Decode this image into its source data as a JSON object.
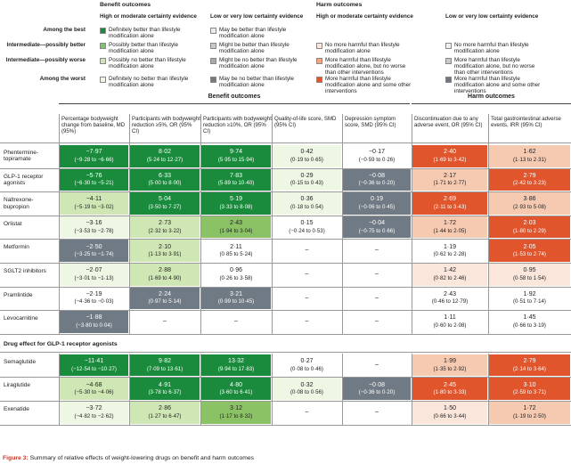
{
  "legend": {
    "benefit_title": "Benefit outcomes",
    "harm_title": "Harm outcomes",
    "benefit_high": "High or moderate certainty evidence",
    "benefit_low": "Low or very low certainty evidence",
    "harm_high": "High or moderate certainty evidence",
    "harm_low": "Low or very low certainty evidence",
    "row_labels": [
      "Among the best",
      "Intermediate—possibly better",
      "Intermediate—possibly worse",
      "Among the worst"
    ],
    "benefit_high_items": [
      {
        "text": "Definitely better than lifestyle modification alone",
        "color": "#1a8a3c"
      },
      {
        "text": "Possibly better than lifestyle modification alone",
        "color": "#7ec46a"
      },
      {
        "text": "Possibly no better than lifestyle modification alone",
        "color": "#cfe6b5"
      },
      {
        "text": "Definitely no better than lifestyle modification alone",
        "color": "#eef6e4"
      }
    ],
    "benefit_low_items": [
      {
        "text": "May be better than lifestyle modification alone",
        "color": "#ebebeb"
      },
      {
        "text": "Might be better than lifestyle modification alone",
        "color": "#c8c8c8"
      },
      {
        "text": "Might be no better than lifestyle modification alone",
        "color": "#a9a9a9"
      },
      {
        "text": "May be no better than lifestyle modification alone",
        "color": "#707a84"
      }
    ],
    "harm_high_items": [
      {
        "text": "No more harmful than lifestyle modification alone",
        "color": "#fbe6dc"
      },
      {
        "text": "More harmful than lifestyle modification alone, but no worse than other interventions",
        "color": "#f2a57f"
      },
      {
        "text": "More harmful than lifestyle modification alone and some other interventions",
        "color": "#e0552b"
      }
    ],
    "harm_low_items": [
      {
        "text": "No more harmful than lifestyle modification alone",
        "color": "#f0f0f0"
      },
      {
        "text": "More harmful than lifestyle modification alone, but no worse than other interventions",
        "color": "#c9c9c9"
      },
      {
        "text": "More harmful than lifestyle modification alone and some other interventions",
        "color": "#6f7780"
      }
    ]
  },
  "table": {
    "benefit_header": "Benefit outcomes",
    "harm_header": "Harm outcomes",
    "columns": [
      "Percentage bodyweight change from baseline, MD (95%)",
      "Participants with bodyweight reduction ≥5%, OR (95% CI)",
      "Participants with bodyweight reduction ≥10%, OR (95% CI)",
      "Quality-of-life score, SMD (95% CI)",
      "Depression symptom score, SMD (95% CI)",
      "Discontinuation due to any adverse event, OR (95% CI)",
      "Total gastrointestinal adverse events, IRR (95% CI)"
    ],
    "rows": [
      {
        "drug": "Phentermine-topiramate",
        "cells": [
          {
            "v": "−7·97",
            "ci": "(−9·28 to −6·66)",
            "c": "#1a8a3c"
          },
          {
            "v": "8·02",
            "ci": "(5·24 to 12·27)",
            "c": "#1a8a3c"
          },
          {
            "v": "9·74",
            "ci": "(5·95 to 15·94)",
            "c": "#1a8a3c"
          },
          {
            "v": "0·42",
            "ci": "(0·19 to 0·65)",
            "c": "#eef6e4"
          },
          {
            "v": "−0·17",
            "ci": "(−0·59 to 0·26)",
            "c": "#ffffff"
          },
          {
            "v": "2·40",
            "ci": "(1·69 to 3·42)",
            "c": "#e0552b"
          },
          {
            "v": "1·62",
            "ci": "(1·13 to 2·31)",
            "c": "#f6c9b1"
          }
        ]
      },
      {
        "drug": "GLP-1 receptor agonists",
        "cells": [
          {
            "v": "−5·76",
            "ci": "(−6·30 to −5·21)",
            "c": "#1a8a3c"
          },
          {
            "v": "6·33",
            "ci": "(5·00 to 8·00)",
            "c": "#1a8a3c"
          },
          {
            "v": "7·83",
            "ci": "(5·89 to 10·40)",
            "c": "#1a8a3c"
          },
          {
            "v": "0·29",
            "ci": "(0·15 to 0·43)",
            "c": "#eef6e4"
          },
          {
            "v": "−0·08",
            "ci": "(−0·36 to 0·20)",
            "c": "#707a84"
          },
          {
            "v": "2·17",
            "ci": "(1·71 to 2·77)",
            "c": "#f6c9b1"
          },
          {
            "v": "2·79",
            "ci": "(2·42 to 3·23)",
            "c": "#e0552b"
          }
        ]
      },
      {
        "drug": "Naltrexone-bupropion",
        "cells": [
          {
            "v": "−4·11",
            "ci": "(−5·19 to −3·02)",
            "c": "#cfe6b5"
          },
          {
            "v": "5·04",
            "ci": "(3·50 to 7·27)",
            "c": "#1a8a3c"
          },
          {
            "v": "5·19",
            "ci": "(3·33 to 8·08)",
            "c": "#1a8a3c"
          },
          {
            "v": "0·36",
            "ci": "(0·18 to 0·54)",
            "c": "#eef6e4"
          },
          {
            "v": "0·19",
            "ci": "(−0·06 to 0·45)",
            "c": "#707a84"
          },
          {
            "v": "2·69",
            "ci": "(2·11 to 3·43)",
            "c": "#e0552b"
          },
          {
            "v": "3·86",
            "ci": "(2·93 to 5·08)",
            "c": "#f6c9b1"
          }
        ]
      },
      {
        "drug": "Orlistat",
        "cells": [
          {
            "v": "−3·16",
            "ci": "(−3·53 to −2·78)",
            "c": "#eef6e4"
          },
          {
            "v": "2·73",
            "ci": "(2·32 to 3·22)",
            "c": "#cfe6b5"
          },
          {
            "v": "2·43",
            "ci": "(1·94 to 3·04)",
            "c": "#8cc266"
          },
          {
            "v": "0·15",
            "ci": "(−0·24 to 0·53)",
            "c": "#ffffff"
          },
          {
            "v": "−0·04",
            "ci": "(−0·75 to 0·66)",
            "c": "#707a84"
          },
          {
            "v": "1·72",
            "ci": "(1·44 to 2·05)",
            "c": "#f6c9b1"
          },
          {
            "v": "2·03",
            "ci": "(1·80 to 2·29)",
            "c": "#e0552b"
          }
        ]
      },
      {
        "drug": "Metformin",
        "cells": [
          {
            "v": "−2·50",
            "ci": "(−3·25 to −1·74)",
            "c": "#707a84"
          },
          {
            "v": "2·10",
            "ci": "(1·13 to 3·91)",
            "c": "#cfe6b5"
          },
          {
            "v": "2·11",
            "ci": "(0·85 to 5·24)",
            "c": "#ffffff"
          },
          {
            "v": "–",
            "ci": "",
            "c": "#ffffff"
          },
          {
            "v": "–",
            "ci": "",
            "c": "#ffffff"
          },
          {
            "v": "1·19",
            "ci": "(0·62 to 2·28)",
            "c": "#ffffff"
          },
          {
            "v": "2·05",
            "ci": "(1·53 to 2·74)",
            "c": "#e0552b"
          }
        ]
      },
      {
        "drug": "SGLT2 inhibitors",
        "cells": [
          {
            "v": "−2·07",
            "ci": "(−3·01 to −1·13)",
            "c": "#eef6e4"
          },
          {
            "v": "2·88",
            "ci": "(1·69 to 4·90)",
            "c": "#cfe6b5"
          },
          {
            "v": "0·96",
            "ci": "(0·26 to 3·58)",
            "c": "#ffffff"
          },
          {
            "v": "–",
            "ci": "",
            "c": "#ffffff"
          },
          {
            "v": "–",
            "ci": "",
            "c": "#ffffff"
          },
          {
            "v": "1·42",
            "ci": "(0·82 to 2·46)",
            "c": "#fbe6dc"
          },
          {
            "v": "0·95",
            "ci": "(0·58 to 1·54)",
            "c": "#fbe6dc"
          }
        ]
      },
      {
        "drug": "Pramlintide",
        "cells": [
          {
            "v": "−2·19",
            "ci": "(−4·36 to −0·03)",
            "c": "#ffffff"
          },
          {
            "v": "2·24",
            "ci": "(0·97 to 5·14)",
            "c": "#707a84"
          },
          {
            "v": "3·21",
            "ci": "(0·99 to 10·45)",
            "c": "#707a84"
          },
          {
            "v": "–",
            "ci": "",
            "c": "#ffffff"
          },
          {
            "v": "–",
            "ci": "",
            "c": "#ffffff"
          },
          {
            "v": "2·43",
            "ci": "(0·46 to 12·79)",
            "c": "#ffffff"
          },
          {
            "v": "1·92",
            "ci": "(0·51 to 7·14)",
            "c": "#ffffff"
          }
        ]
      },
      {
        "drug": "Levocarnitine",
        "cells": [
          {
            "v": "−1·88",
            "ci": "(−3·80 to 0·04)",
            "c": "#707a84"
          },
          {
            "v": "–",
            "ci": "",
            "c": "#ffffff"
          },
          {
            "v": "–",
            "ci": "",
            "c": "#ffffff"
          },
          {
            "v": "–",
            "ci": "",
            "c": "#ffffff"
          },
          {
            "v": "–",
            "ci": "",
            "c": "#ffffff"
          },
          {
            "v": "1·11",
            "ci": "(0·60 to 2·08)",
            "c": "#ffffff"
          },
          {
            "v": "1·45",
            "ci": "(0·66 to 3·19)",
            "c": "#ffffff"
          }
        ]
      }
    ],
    "section_title": "Drug effect for GLP-1 receptor agonists",
    "glp_rows": [
      {
        "drug": "Semaglutide",
        "cells": [
          {
            "v": "−11·41",
            "ci": "(−12·54 to −10·27)",
            "c": "#1a8a3c"
          },
          {
            "v": "9·82",
            "ci": "(7·09 to 13·61)",
            "c": "#1a8a3c"
          },
          {
            "v": "13·32",
            "ci": "(9·94 to 17·83)",
            "c": "#1a8a3c"
          },
          {
            "v": "0·27",
            "ci": "(0·08 to 0·46)",
            "c": "#ffffff"
          },
          {
            "v": "–",
            "ci": "",
            "c": "#ffffff"
          },
          {
            "v": "1·99",
            "ci": "(1·35 to 2·92)",
            "c": "#f6c9b1"
          },
          {
            "v": "2·79",
            "ci": "(2·14 to 3·64)",
            "c": "#e0552b"
          }
        ]
      },
      {
        "drug": "Liraglutide",
        "cells": [
          {
            "v": "−4·68",
            "ci": "(−5·30 to −4·06)",
            "c": "#cfe6b5"
          },
          {
            "v": "4·91",
            "ci": "(3·78 to 6·37)",
            "c": "#1a8a3c"
          },
          {
            "v": "4·80",
            "ci": "(3·60 to 6·41)",
            "c": "#1a8a3c"
          },
          {
            "v": "0·32",
            "ci": "(0·08 to 0·56)",
            "c": "#eef6e4"
          },
          {
            "v": "−0·08",
            "ci": "(−0·36 to 0·20)",
            "c": "#707a84"
          },
          {
            "v": "2·45",
            "ci": "(1·80 to 3·33)",
            "c": "#e0552b"
          },
          {
            "v": "3·10",
            "ci": "(2·59 to 3·71)",
            "c": "#e0552b"
          }
        ]
      },
      {
        "drug": "Exenatide",
        "cells": [
          {
            "v": "−3·72",
            "ci": "(−4·82 to −2·62)",
            "c": "#eef6e4"
          },
          {
            "v": "2·86",
            "ci": "(1·27 to 6·47)",
            "c": "#cfe6b5"
          },
          {
            "v": "3·12",
            "ci": "(1·17 to 8·32)",
            "c": "#8cc266"
          },
          {
            "v": "–",
            "ci": "",
            "c": "#ffffff"
          },
          {
            "v": "–",
            "ci": "",
            "c": "#ffffff"
          },
          {
            "v": "1·50",
            "ci": "(0·66 to 3·44)",
            "c": "#fbe6dc"
          },
          {
            "v": "1·72",
            "ci": "(1·19 to 2·50)",
            "c": "#f6c9b1"
          }
        ]
      }
    ]
  },
  "caption": {
    "figure": "Figure 3:",
    "text": " Summary of relative effects of weight-lowering drugs on benefit and harm outcomes"
  }
}
